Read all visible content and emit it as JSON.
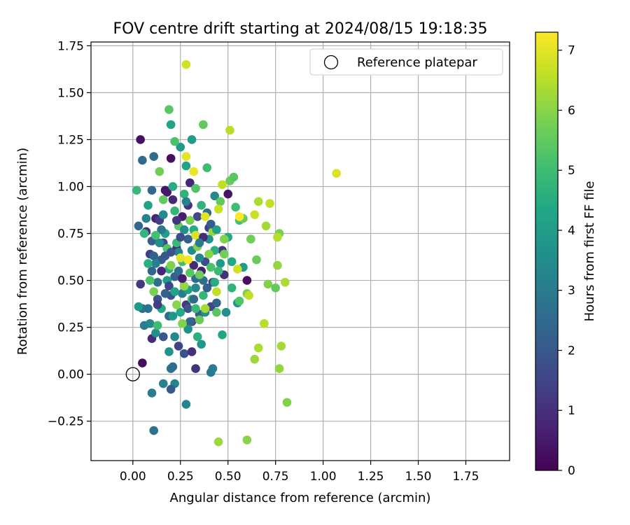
{
  "chart_data": {
    "type": "scatter",
    "title": "FOV centre drift starting at 2024/08/15 19:18:35",
    "xlabel": "Angular distance from reference (arcmin)",
    "ylabel": "Rotation from reference (arcmin)",
    "colorbar_label": "Hours from first FF file",
    "xlim": [
      -0.22,
      1.98
    ],
    "ylim": [
      -0.46,
      1.77
    ],
    "clim": [
      0,
      7.3
    ],
    "grid": true,
    "legend_position": "top-right",
    "x_ticks": [
      "0.00",
      "0.25",
      "0.50",
      "0.75",
      "1.00",
      "1.25",
      "1.50",
      "1.75"
    ],
    "x_tick_values": [
      0,
      0.25,
      0.5,
      0.75,
      1.0,
      1.25,
      1.5,
      1.75
    ],
    "y_ticks": [
      "−0.25",
      "0.00",
      "0.25",
      "0.50",
      "0.75",
      "1.00",
      "1.25",
      "1.50",
      "1.75"
    ],
    "y_tick_values": [
      -0.25,
      0,
      0.25,
      0.5,
      0.75,
      1.0,
      1.25,
      1.5,
      1.75
    ],
    "colorbar_ticks": [
      "0",
      "1",
      "2",
      "3",
      "4",
      "5",
      "6",
      "7"
    ],
    "colorbar_tick_values": [
      0,
      1,
      2,
      3,
      4,
      5,
      6,
      7
    ],
    "colormap": "viridis",
    "reference": {
      "label": "Reference platepar",
      "x": 0.0,
      "y": 0.0
    },
    "series": [
      {
        "points": [
          [
            0.04,
            1.25,
            0.3
          ],
          [
            0.05,
            0.06,
            0.2
          ],
          [
            0.04,
            0.48,
            1.2
          ],
          [
            0.07,
            0.76,
            1.0
          ],
          [
            0.09,
            0.64,
            1.3
          ],
          [
            0.1,
            0.19,
            0.9
          ],
          [
            0.12,
            0.83,
            0.7
          ],
          [
            0.14,
            0.82,
            1.4
          ],
          [
            0.17,
            0.98,
            0.4
          ],
          [
            0.18,
            0.97,
            0.5
          ],
          [
            0.2,
            1.15,
            0.3
          ],
          [
            0.21,
            0.93,
            0.8
          ],
          [
            0.23,
            0.67,
            1.0
          ],
          [
            0.26,
            0.84,
            0.6
          ],
          [
            0.28,
            0.37,
            1.2
          ],
          [
            0.29,
            0.9,
            1.1
          ],
          [
            0.3,
            1.02,
            0.8
          ],
          [
            0.32,
            0.58,
            0.9
          ],
          [
            0.33,
            0.03,
            1.1
          ],
          [
            0.34,
            0.84,
            1.6
          ],
          [
            0.36,
            0.55,
            0.6
          ],
          [
            0.4,
            0.78,
            1.4
          ],
          [
            0.41,
            0.36,
            1.5
          ],
          [
            0.47,
            0.66,
            1.2
          ],
          [
            0.48,
            0.53,
            1.0
          ],
          [
            0.5,
            0.96,
            0.4
          ],
          [
            0.6,
            0.5,
            0.3
          ],
          [
            0.13,
            0.4,
            1.8
          ],
          [
            0.16,
            0.7,
            1.6
          ],
          [
            0.2,
            0.42,
            1.9
          ],
          [
            0.24,
            0.15,
            1.5
          ],
          [
            0.27,
            0.11,
            1.8
          ],
          [
            0.31,
            0.28,
            1.4
          ],
          [
            0.38,
            0.6,
            1.7
          ],
          [
            0.42,
            0.49,
            1.3
          ],
          [
            0.1,
            0.98,
            2.4
          ],
          [
            0.05,
            1.14,
            2.5
          ],
          [
            0.11,
            1.16,
            2.6
          ],
          [
            0.03,
            0.79,
            2.4
          ],
          [
            0.05,
            0.35,
            2.6
          ],
          [
            0.08,
            0.35,
            2.8
          ],
          [
            0.1,
            0.71,
            2.2
          ],
          [
            0.11,
            0.63,
            2.3
          ],
          [
            0.1,
            0.55,
            2.4
          ],
          [
            0.13,
            0.49,
            2.7
          ],
          [
            0.15,
            0.61,
            2.1
          ],
          [
            0.16,
            0.2,
            2.0
          ],
          [
            0.17,
            0.43,
            2.3
          ],
          [
            0.19,
            0.31,
            2.5
          ],
          [
            0.2,
            0.03,
            2.8
          ],
          [
            0.21,
            0.04,
            2.6
          ],
          [
            0.22,
            0.52,
            2.2
          ],
          [
            0.11,
            -0.3,
            2.8
          ],
          [
            0.1,
            -0.1,
            3.0
          ],
          [
            0.16,
            -0.05,
            3.2
          ],
          [
            0.22,
            -0.05,
            3.3
          ],
          [
            0.2,
            -0.08,
            2.0
          ],
          [
            0.28,
            -0.16,
            3.3
          ],
          [
            0.29,
            0.72,
            2.2
          ],
          [
            0.3,
            0.28,
            2.4
          ],
          [
            0.33,
            0.51,
            2.5
          ],
          [
            0.35,
            0.32,
            2.1
          ],
          [
            0.37,
            0.5,
            2.7
          ],
          [
            0.39,
            0.86,
            2.6
          ],
          [
            0.41,
            0.01,
            2.9
          ],
          [
            0.42,
            0.03,
            3.0
          ],
          [
            0.44,
            0.38,
            2.3
          ],
          [
            0.06,
            0.26,
            3.1
          ],
          [
            0.07,
            0.83,
            3.2
          ],
          [
            0.09,
            0.27,
            3.4
          ],
          [
            0.12,
            0.22,
            3.6
          ],
          [
            0.14,
            0.7,
            3.5
          ],
          [
            0.19,
            0.12,
            3.7
          ],
          [
            0.22,
            0.2,
            3.4
          ],
          [
            0.24,
            0.65,
            3.3
          ],
          [
            0.26,
            0.43,
            3.1
          ],
          [
            0.29,
            0.24,
            3.6
          ],
          [
            0.31,
            0.66,
            3.5
          ],
          [
            0.33,
            0.46,
            3.4
          ],
          [
            0.36,
            0.16,
            3.8
          ],
          [
            0.38,
            0.33,
            3.6
          ],
          [
            0.4,
            0.72,
            3.7
          ],
          [
            0.43,
            0.95,
            3.4
          ],
          [
            0.46,
            0.59,
            3.9
          ],
          [
            0.49,
            0.33,
            3.6
          ],
          [
            0.55,
            0.38,
            3.8
          ],
          [
            0.58,
            0.57,
            4.0
          ],
          [
            0.25,
            1.21,
            3.9
          ],
          [
            0.2,
            1.33,
            4.3
          ],
          [
            0.31,
            1.25,
            4.0
          ],
          [
            0.28,
            1.11,
            4.2
          ],
          [
            0.21,
            1.0,
            4.5
          ],
          [
            0.03,
            0.36,
            3.9
          ],
          [
            0.08,
            0.9,
            4.2
          ],
          [
            0.15,
            0.35,
            4.4
          ],
          [
            0.17,
            0.75,
            4.1
          ],
          [
            0.19,
            0.56,
            4.6
          ],
          [
            0.22,
            0.87,
            4.8
          ],
          [
            0.25,
            0.33,
            4.4
          ],
          [
            0.27,
            0.96,
            4.7
          ],
          [
            0.29,
            0.45,
            4.2
          ],
          [
            0.32,
            0.77,
            4.5
          ],
          [
            0.34,
            0.2,
            4.6
          ],
          [
            0.37,
            0.42,
            4.8
          ],
          [
            0.39,
            1.1,
            5.0
          ],
          [
            0.43,
            0.66,
            4.6
          ],
          [
            0.45,
            0.55,
            4.9
          ],
          [
            0.47,
            0.21,
            4.3
          ],
          [
            0.5,
            0.73,
            4.4
          ],
          [
            0.52,
            0.46,
            4.7
          ],
          [
            0.54,
            0.89,
            5.0
          ],
          [
            0.56,
            0.82,
            5.1
          ],
          [
            0.02,
            0.98,
            4.9
          ],
          [
            0.06,
            0.75,
            4.8
          ],
          [
            0.09,
            0.5,
            5.2
          ],
          [
            0.13,
            0.26,
            5.0
          ],
          [
            0.18,
            0.67,
            5.3
          ],
          [
            0.19,
            1.41,
            5.4
          ],
          [
            0.22,
            1.24,
            5.2
          ],
          [
            0.24,
            0.79,
            5.5
          ],
          [
            0.26,
            0.6,
            5.1
          ],
          [
            0.3,
            0.54,
            5.4
          ],
          [
            0.33,
            0.99,
            5.3
          ],
          [
            0.35,
            0.29,
            5.6
          ],
          [
            0.37,
            1.33,
            5.5
          ],
          [
            0.41,
            0.57,
            5.2
          ],
          [
            0.44,
            0.33,
            5.4
          ],
          [
            0.46,
            0.92,
            5.5
          ],
          [
            0.48,
            0.64,
            5.7
          ],
          [
            0.51,
            1.03,
            5.6
          ],
          [
            0.53,
            1.05,
            5.4
          ],
          [
            0.56,
            0.39,
            5.3
          ],
          [
            0.58,
            0.83,
            5.6
          ],
          [
            0.6,
            0.43,
            5.8
          ],
          [
            0.62,
            0.72,
            5.7
          ],
          [
            0.65,
            0.61,
            5.6
          ],
          [
            0.71,
            0.48,
            5.9
          ],
          [
            0.75,
            0.46,
            5.5
          ],
          [
            0.77,
            0.75,
            5.8
          ],
          [
            0.77,
            0.03,
            6.1
          ],
          [
            0.51,
            1.3,
            6.5
          ],
          [
            0.45,
            -0.36,
            6.2
          ],
          [
            0.6,
            -0.35,
            6.0
          ],
          [
            0.81,
            -0.15,
            5.9
          ],
          [
            0.78,
            0.15,
            6.3
          ],
          [
            0.66,
            0.14,
            6.4
          ],
          [
            0.64,
            0.08,
            6.2
          ],
          [
            0.69,
            0.27,
            6.5
          ],
          [
            0.61,
            0.42,
            6.6
          ],
          [
            0.66,
            0.92,
            6.4
          ],
          [
            0.72,
            0.91,
            6.6
          ],
          [
            0.64,
            0.85,
            6.7
          ],
          [
            0.7,
            0.79,
            6.3
          ],
          [
            0.76,
            0.73,
            6.5
          ],
          [
            0.76,
            0.58,
            6.1
          ],
          [
            0.8,
            0.49,
            6.4
          ],
          [
            0.55,
            0.56,
            6.8
          ],
          [
            0.44,
            0.44,
            6.6
          ],
          [
            0.38,
            0.35,
            6.3
          ],
          [
            0.45,
            0.88,
            6.7
          ],
          [
            0.33,
            0.74,
            6.9
          ],
          [
            0.29,
            0.61,
            7.2
          ],
          [
            0.25,
            0.62,
            7.0
          ],
          [
            0.32,
            1.08,
            7.1
          ],
          [
            0.38,
            0.84,
            7.0
          ],
          [
            0.56,
            0.84,
            7.3
          ],
          [
            0.28,
            1.16,
            7.0
          ],
          [
            0.28,
            1.65,
            6.8
          ],
          [
            1.07,
            1.07,
            6.9
          ],
          [
            0.47,
            1.01,
            6.6
          ],
          [
            0.2,
            0.58,
            5.9
          ],
          [
            0.23,
            0.37,
            6.0
          ],
          [
            0.27,
            0.47,
            6.1
          ],
          [
            0.34,
            0.68,
            5.9
          ],
          [
            0.42,
            0.76,
            6.2
          ],
          [
            0.14,
            1.08,
            5.7
          ],
          [
            0.11,
            0.44,
            5.8
          ],
          [
            0.16,
            0.93,
            5.5
          ],
          [
            0.35,
            0.53,
            5.7
          ],
          [
            0.4,
            0.64,
            6.0
          ],
          [
            0.48,
            0.72,
            5.9
          ],
          [
            0.3,
            0.82,
            5.8
          ],
          [
            0.26,
            0.27,
            5.9
          ],
          [
            0.23,
            0.7,
            4.9
          ],
          [
            0.31,
            0.4,
            5.0
          ],
          [
            0.36,
            0.9,
            4.7
          ],
          [
            0.43,
            0.49,
            4.5
          ],
          [
            0.18,
            0.5,
            4.0
          ],
          [
            0.21,
            0.31,
            3.8
          ],
          [
            0.27,
            0.77,
            3.6
          ],
          [
            0.35,
            0.62,
            3.3
          ],
          [
            0.12,
            0.59,
            3.1
          ],
          [
            0.15,
            0.77,
            2.9
          ],
          [
            0.24,
            0.55,
            2.7
          ],
          [
            0.32,
            0.4,
            2.5
          ],
          [
            0.39,
            0.46,
            2.2
          ],
          [
            0.17,
            0.63,
            2.0
          ],
          [
            0.29,
            0.35,
            1.9
          ],
          [
            0.25,
            0.73,
            1.7
          ],
          [
            0.19,
            0.47,
            1.5
          ],
          [
            0.13,
            0.37,
            1.3
          ],
          [
            0.23,
            0.82,
            1.1
          ],
          [
            0.37,
            0.73,
            0.9
          ],
          [
            0.31,
            0.12,
            1.0
          ],
          [
            0.26,
            0.51,
            0.6
          ],
          [
            0.15,
            0.55,
            0.8
          ],
          [
            0.2,
            0.65,
            1.9
          ],
          [
            0.41,
            0.8,
            2.1
          ],
          [
            0.35,
            0.7,
            3.0
          ],
          [
            0.28,
            0.92,
            3.2
          ],
          [
            0.16,
            0.85,
            3.5
          ],
          [
            0.44,
            0.77,
            4.1
          ],
          [
            0.52,
            0.6,
            4.4
          ],
          [
            0.22,
            0.44,
            4.2
          ],
          [
            0.08,
            0.59,
            4.6
          ],
          [
            0.12,
            0.74,
            5.1
          ],
          [
            0.33,
            0.35,
            4.9
          ]
        ]
      }
    ]
  }
}
